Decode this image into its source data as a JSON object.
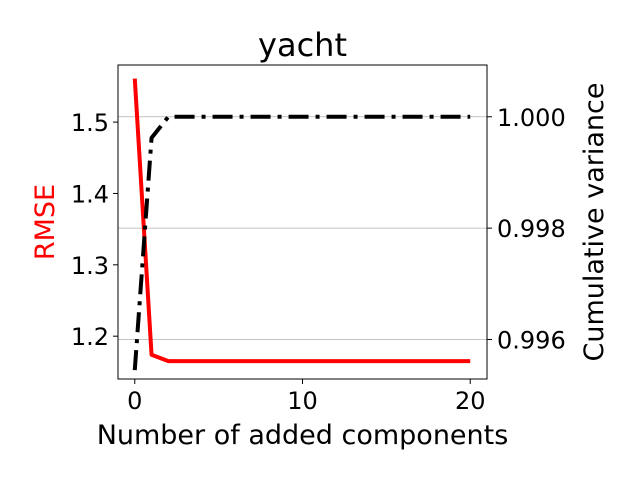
{
  "chart_data": {
    "type": "line",
    "title": "yacht",
    "xlabel": "Number of added components",
    "ylabel_left": "RMSE",
    "ylabel_right": "Cumulative variance",
    "x_ticks": [
      "0",
      "10",
      "20"
    ],
    "y_left_ticks": [
      "1.2",
      "1.3",
      "1.4",
      "1.5"
    ],
    "y_right_ticks": [
      "0.996",
      "0.998",
      "1.000"
    ],
    "xlim": [
      -1,
      21
    ],
    "ylim_left": [
      1.14,
      1.58
    ],
    "ylim_right": [
      0.99529,
      1.00093
    ],
    "grid": "horizontal-right-axis",
    "colors": {
      "rmse": "#ff0000",
      "variance": "#000000"
    },
    "series": [
      {
        "axis": "left",
        "style": "solid",
        "x": [
          0,
          1,
          2,
          3,
          4,
          5,
          6,
          7,
          8,
          9,
          10,
          11,
          12,
          13,
          14,
          15,
          16,
          17,
          18,
          19,
          20
        ],
        "values": [
          1.561,
          1.174,
          1.165,
          1.165,
          1.165,
          1.165,
          1.165,
          1.165,
          1.165,
          1.165,
          1.165,
          1.165,
          1.165,
          1.165,
          1.165,
          1.165,
          1.165,
          1.165,
          1.165,
          1.165,
          1.165
        ]
      },
      {
        "axis": "right",
        "style": "dashdot",
        "x": [
          0,
          1,
          2,
          3,
          4,
          5,
          6,
          7,
          8,
          9,
          10,
          11,
          12,
          13,
          14,
          15,
          16,
          17,
          18,
          19,
          20
        ],
        "values": [
          0.99545,
          0.99962,
          1.0,
          1.0,
          1.0,
          1.0,
          1.0,
          1.0,
          1.0,
          1.0,
          1.0,
          1.0,
          1.0,
          1.0,
          1.0,
          1.0,
          1.0,
          1.0,
          1.0,
          1.0,
          1.0
        ]
      }
    ]
  }
}
